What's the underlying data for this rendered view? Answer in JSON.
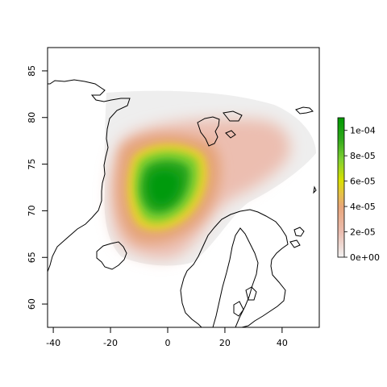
{
  "chart_data": {
    "type": "heatmap",
    "title": "",
    "xlabel": "",
    "ylabel": "",
    "xlim": [
      -42,
      53
    ],
    "ylim": [
      57.5,
      87.5
    ],
    "x_ticks": [
      -40,
      -20,
      0,
      20,
      40
    ],
    "y_ticks": [
      60,
      65,
      70,
      75,
      80,
      85
    ],
    "x_tick_labels": [
      "-40",
      "-20",
      "0",
      "20",
      "40"
    ],
    "y_tick_labels": [
      "60",
      "65",
      "70",
      "75",
      "80",
      "85"
    ],
    "grid": false,
    "legend": {
      "type": "colorbar",
      "placement": "right",
      "range": [
        0,
        0.00011
      ],
      "ticks": [
        0,
        2e-05,
        4e-05,
        6e-05,
        8e-05,
        0.0001
      ],
      "tick_labels": [
        "0e+00",
        "2e-05",
        "4e-05",
        "6e-05",
        "8e-05",
        "1e-04"
      ],
      "colors": [
        "#f2f2f2",
        "#ebbdb0",
        "#e9a67b",
        "#e6c04a",
        "#d9e000",
        "#7fd032",
        "#2ea81a",
        "#009900"
      ]
    },
    "density_peak": {
      "lon": -3,
      "lat": 71.5,
      "value": 0.000105
    },
    "support_region_color": "#eeeeee"
  }
}
